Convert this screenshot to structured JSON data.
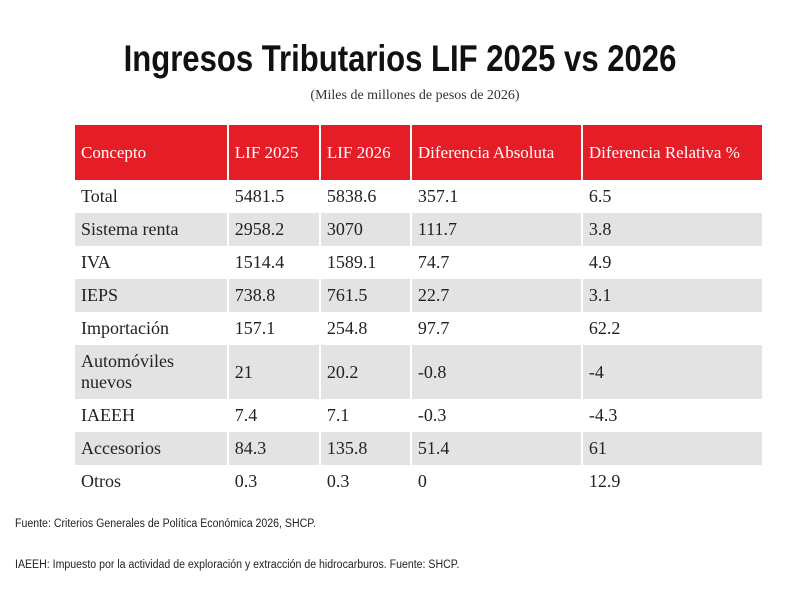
{
  "header": {
    "title": "Ingresos Tributarios LIF 2025 vs 2026",
    "subtitle": "(Miles de millones de pesos de 2026)"
  },
  "table": {
    "columns": [
      "Concepto",
      "LIF 2025",
      "LIF 2026",
      "Diferencia Absoluta",
      "Diferencia Relativa %"
    ],
    "rows": [
      [
        "Total",
        "5481.5",
        "5838.6",
        "357.1",
        "6.5"
      ],
      [
        "Sistema renta",
        "2958.2",
        "3070",
        "111.7",
        "3.8"
      ],
      [
        "IVA",
        "1514.4",
        "1589.1",
        "74.7",
        "4.9"
      ],
      [
        "IEPS",
        "738.8",
        "761.5",
        "22.7",
        "3.1"
      ],
      [
        "Importación",
        "157.1",
        "254.8",
        "97.7",
        "62.2"
      ],
      [
        "Automóviles nuevos",
        "21",
        "20.2",
        "-0.8",
        "-4"
      ],
      [
        "IAEEH",
        "7.4",
        "7.1",
        "-0.3",
        "-4.3"
      ],
      [
        "Accesorios",
        "84.3",
        "135.8",
        "51.4",
        "61"
      ],
      [
        "Otros",
        "0.3",
        "0.3",
        "0",
        "12.9"
      ]
    ]
  },
  "footnotes": [
    "Fuente: Criterios Generales de Política Económica 2026, SHCP.",
    "IAEEH: Impuesto por la actividad de exploración y extracción de hidrocarburos. Fuente: SHCP."
  ]
}
